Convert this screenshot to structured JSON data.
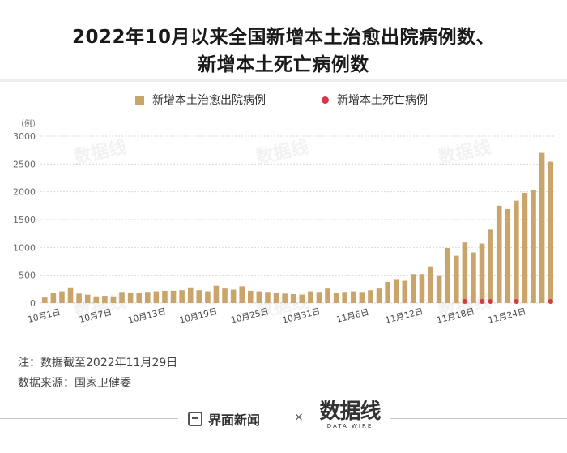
{
  "title_line1": "2022年10月以来全国新增本土治愈出院病例数、",
  "title_line2": "新增本土死亡病例数",
  "legend": {
    "recovered": "新增本土治愈出院病例",
    "deaths": "新增本土死亡病例"
  },
  "watermark_text": "数据线",
  "note_cutoff": "注：数据截至2022年11月29日",
  "note_source": "数据来源：国家卫健委",
  "footer": {
    "brand": "界面新闻",
    "times": "×",
    "partner": "数据线",
    "partner_sub": "DATA WIRE"
  },
  "colors": {
    "bar": "#c9a46b",
    "death_dot": "#d4384a",
    "grid": "#d9d9d9"
  },
  "chart_data": {
    "type": "bar",
    "ylabel": "（例）",
    "ylim": [
      0,
      3000
    ],
    "yticks": [
      0,
      500,
      1000,
      1500,
      2000,
      2500,
      3000
    ],
    "x": [
      "10月1日",
      "10月2日",
      "10月3日",
      "10月4日",
      "10月5日",
      "10月6日",
      "10月7日",
      "10月8日",
      "10月9日",
      "10月10日",
      "10月11日",
      "10月12日",
      "10月13日",
      "10月14日",
      "10月15日",
      "10月16日",
      "10月17日",
      "10月18日",
      "10月19日",
      "10月20日",
      "10月21日",
      "10月22日",
      "10月23日",
      "10月24日",
      "10月25日",
      "10月26日",
      "10月27日",
      "10月28日",
      "10月29日",
      "10月30日",
      "10月31日",
      "11月1日",
      "11月2日",
      "11月3日",
      "11月4日",
      "11月5日",
      "11月6日",
      "11月7日",
      "11月8日",
      "11月9日",
      "11月10日",
      "11月11日",
      "11月12日",
      "11月13日",
      "11月14日",
      "11月15日",
      "11月16日",
      "11月17日",
      "11月18日",
      "11月19日",
      "11月20日",
      "11月21日",
      "11月22日",
      "11月23日",
      "11月24日",
      "11月25日",
      "11月26日",
      "11月27日",
      "11月28日",
      "11月29日"
    ],
    "xtick_labels": [
      "10月1日",
      "10月7日",
      "10月13日",
      "10月19日",
      "10月25日",
      "10月31日",
      "11月6日",
      "11月12日",
      "11月18日",
      "11月24日"
    ],
    "grid": true,
    "legend_position": "top",
    "series": [
      {
        "name": "新增本土治愈出院病例",
        "type": "bar",
        "values": [
          100,
          180,
          210,
          280,
          170,
          150,
          120,
          130,
          120,
          200,
          190,
          180,
          200,
          210,
          220,
          220,
          230,
          280,
          230,
          210,
          310,
          260,
          240,
          300,
          220,
          210,
          200,
          180,
          170,
          160,
          150,
          210,
          200,
          260,
          190,
          200,
          210,
          200,
          230,
          260,
          380,
          430,
          400,
          520,
          520,
          660,
          500,
          990,
          850,
          1090,
          910,
          1070,
          1320,
          1750,
          1690,
          1840,
          1980,
          2030,
          2700,
          2540
        ]
      },
      {
        "name": "新增本土死亡病例",
        "type": "dot",
        "values": [
          0,
          0,
          0,
          0,
          0,
          0,
          0,
          0,
          0,
          0,
          0,
          0,
          0,
          0,
          0,
          0,
          0,
          0,
          0,
          0,
          0,
          0,
          0,
          0,
          0,
          0,
          0,
          0,
          0,
          0,
          0,
          0,
          0,
          0,
          0,
          0,
          0,
          0,
          0,
          0,
          0,
          0,
          0,
          0,
          0,
          0,
          0,
          0,
          0,
          1,
          0,
          1,
          1,
          0,
          0,
          1,
          0,
          0,
          0,
          1
        ]
      }
    ]
  }
}
